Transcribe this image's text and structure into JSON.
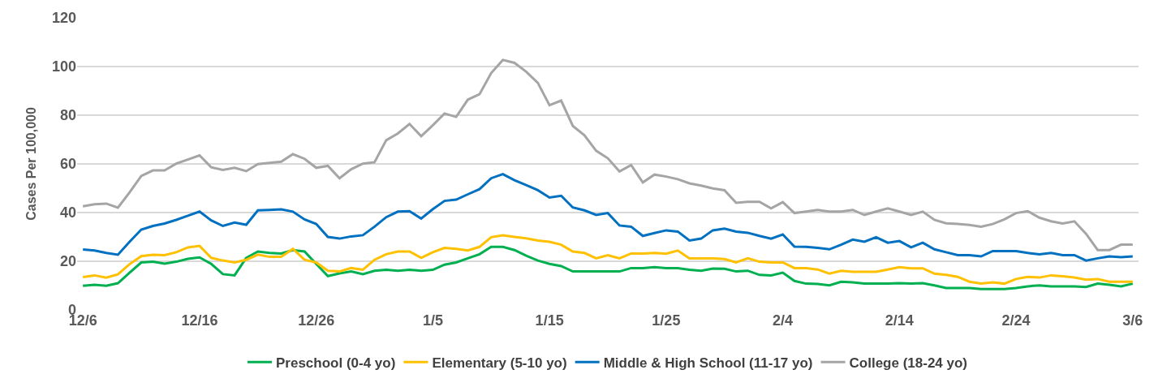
{
  "chart_data": {
    "type": "line",
    "ylabel": "Cases Per 100,000",
    "categories": [
      "12/6",
      null,
      null,
      null,
      null,
      null,
      null,
      null,
      null,
      null,
      "12/16",
      null,
      null,
      null,
      null,
      null,
      null,
      null,
      null,
      null,
      "12/26",
      null,
      null,
      null,
      null,
      null,
      null,
      null,
      null,
      null,
      "1/5",
      null,
      null,
      null,
      null,
      null,
      null,
      null,
      null,
      null,
      "1/15",
      null,
      null,
      null,
      null,
      null,
      null,
      null,
      null,
      null,
      "1/25",
      null,
      null,
      null,
      null,
      null,
      null,
      null,
      null,
      null,
      "2/4",
      null,
      null,
      null,
      null,
      null,
      null,
      null,
      null,
      null,
      "2/14",
      null,
      null,
      null,
      null,
      null,
      null,
      null,
      null,
      null,
      "2/24",
      null,
      null,
      null,
      null,
      null,
      null,
      null,
      null,
      null,
      "3/6"
    ],
    "series": [
      {
        "name": "Preschool (0-4 yo)",
        "color": "#00b050",
        "values": [
          9.9,
          10.3,
          9.9,
          11,
          15.3,
          19.5,
          19.8,
          19,
          19.8,
          21,
          21.6,
          18.9,
          14.7,
          14.2,
          21.4,
          24,
          23.4,
          23.2,
          24.6,
          24,
          18.9,
          13.9,
          15,
          15.8,
          14.7,
          16.1,
          16.5,
          16.1,
          16.5,
          16.1,
          16.5,
          18.6,
          19.5,
          21.2,
          22.9,
          25.9,
          25.9,
          24.6,
          22.3,
          20.3,
          18.9,
          18,
          15.8,
          15.8,
          15.8,
          15.8,
          15.8,
          17.2,
          17.2,
          17.6,
          17.2,
          17.2,
          16.5,
          16.1,
          17,
          16.9,
          15.8,
          16.1,
          14.4,
          14.2,
          15.3,
          11.9,
          10.8,
          10.7,
          10.1,
          11.6,
          11.3,
          10.8,
          10.8,
          10.8,
          11,
          10.8,
          11,
          10.1,
          9,
          9,
          9,
          8.6,
          8.6,
          8.6,
          9,
          9.7,
          10.1,
          9.7,
          9.7,
          9.7,
          9.4,
          10.8,
          10.3,
          9.7,
          10.8
        ]
      },
      {
        "name": "Elementary (5-10 yo)",
        "color": "#ffc000",
        "values": [
          13.5,
          14.2,
          13.3,
          14.6,
          18.8,
          22.1,
          22.7,
          22.5,
          23.7,
          25.7,
          26.3,
          21.4,
          20.3,
          19.5,
          20.6,
          22.7,
          21.8,
          21.8,
          25.1,
          20.6,
          19.5,
          16.1,
          15.8,
          17.2,
          16.5,
          20.6,
          22.9,
          24,
          24,
          21.4,
          23.7,
          25.5,
          25.1,
          24.4,
          25.9,
          29.9,
          30.7,
          30,
          29.4,
          28.5,
          28,
          26.8,
          24,
          23.4,
          21.2,
          22.5,
          21.2,
          23.2,
          23.2,
          23.4,
          23.1,
          24.4,
          21.2,
          21.2,
          21.2,
          20.9,
          19.5,
          21.2,
          19.8,
          19.5,
          19.5,
          17.2,
          17.2,
          16.6,
          14.9,
          16.1,
          15.7,
          15.7,
          15.7,
          16.6,
          17.6,
          17.1,
          17.1,
          14.9,
          14.4,
          13.6,
          11.6,
          10.8,
          11.3,
          10.8,
          12.7,
          13.6,
          13.3,
          14.2,
          13.8,
          13.3,
          12.4,
          12.7,
          11.6,
          11.6,
          11.6
        ]
      },
      {
        "name": "Middle & High School (11-17 yo)",
        "color": "#0070c0",
        "values": [
          24.8,
          24.4,
          23.4,
          22.7,
          28,
          33,
          34.5,
          35.5,
          37,
          38.7,
          40.4,
          36.8,
          34.5,
          35.9,
          35,
          40.9,
          41.1,
          41.3,
          40.4,
          37.2,
          35.3,
          30,
          29.3,
          30.2,
          30.7,
          34.2,
          38.1,
          40.4,
          40.6,
          37.5,
          41.4,
          44.8,
          45.3,
          47.5,
          49.6,
          54.1,
          55.8,
          53.3,
          51.3,
          49.2,
          46.2,
          46.9,
          42.1,
          40.9,
          39,
          39.8,
          34.7,
          34.2,
          30.4,
          31.6,
          32.7,
          32.2,
          28.5,
          29.3,
          32.7,
          33.4,
          32.2,
          31.7,
          30.4,
          29.3,
          31,
          26,
          25.9,
          25.5,
          24.9,
          26.8,
          28.9,
          28,
          29.9,
          27.6,
          28.3,
          25.7,
          27.6,
          24.9,
          23.7,
          22.5,
          22.5,
          22,
          24.2,
          24.2,
          24.2,
          23.4,
          22.8,
          23.4,
          22.5,
          22.5,
          20.3,
          21.2,
          22,
          21.7,
          22
        ]
      },
      {
        "name": "College (18-24 yo)",
        "color": "#a5a5a5",
        "values": [
          42.6,
          43.4,
          43.7,
          42,
          48.3,
          55,
          57.3,
          57.3,
          60.1,
          61.8,
          63.5,
          58.6,
          57.5,
          58.4,
          57,
          59.9,
          60.4,
          60.9,
          64,
          62.1,
          58.4,
          59.2,
          54.1,
          57.8,
          60.1,
          60.7,
          69.7,
          72.5,
          76.4,
          71.4,
          75.9,
          80.7,
          79.3,
          86.4,
          88.6,
          97.3,
          102.7,
          101.5,
          97.9,
          93.3,
          84.1,
          86,
          75.6,
          71.7,
          65.4,
          62.3,
          56.9,
          59.5,
          52.4,
          55.6,
          54.8,
          53.7,
          52,
          51.1,
          49.9,
          49.2,
          44,
          44.4,
          44.4,
          41.7,
          44.3,
          39.8,
          40.4,
          41.1,
          40.4,
          40.4,
          41.1,
          39,
          40.4,
          41.7,
          40.4,
          39,
          40.4,
          37,
          35.6,
          35.3,
          34.9,
          34.2,
          35.3,
          37.2,
          39.8,
          40.6,
          37.9,
          36.4,
          35.5,
          36.4,
          31.3,
          24.6,
          24.6,
          26.8,
          26.8
        ]
      }
    ],
    "ylim": [
      0,
      120
    ],
    "yticks": [
      0,
      20,
      40,
      60,
      80,
      100,
      120
    ],
    "grid": "y",
    "legend": "bottom",
    "marker": "none",
    "line_style": "solid"
  }
}
